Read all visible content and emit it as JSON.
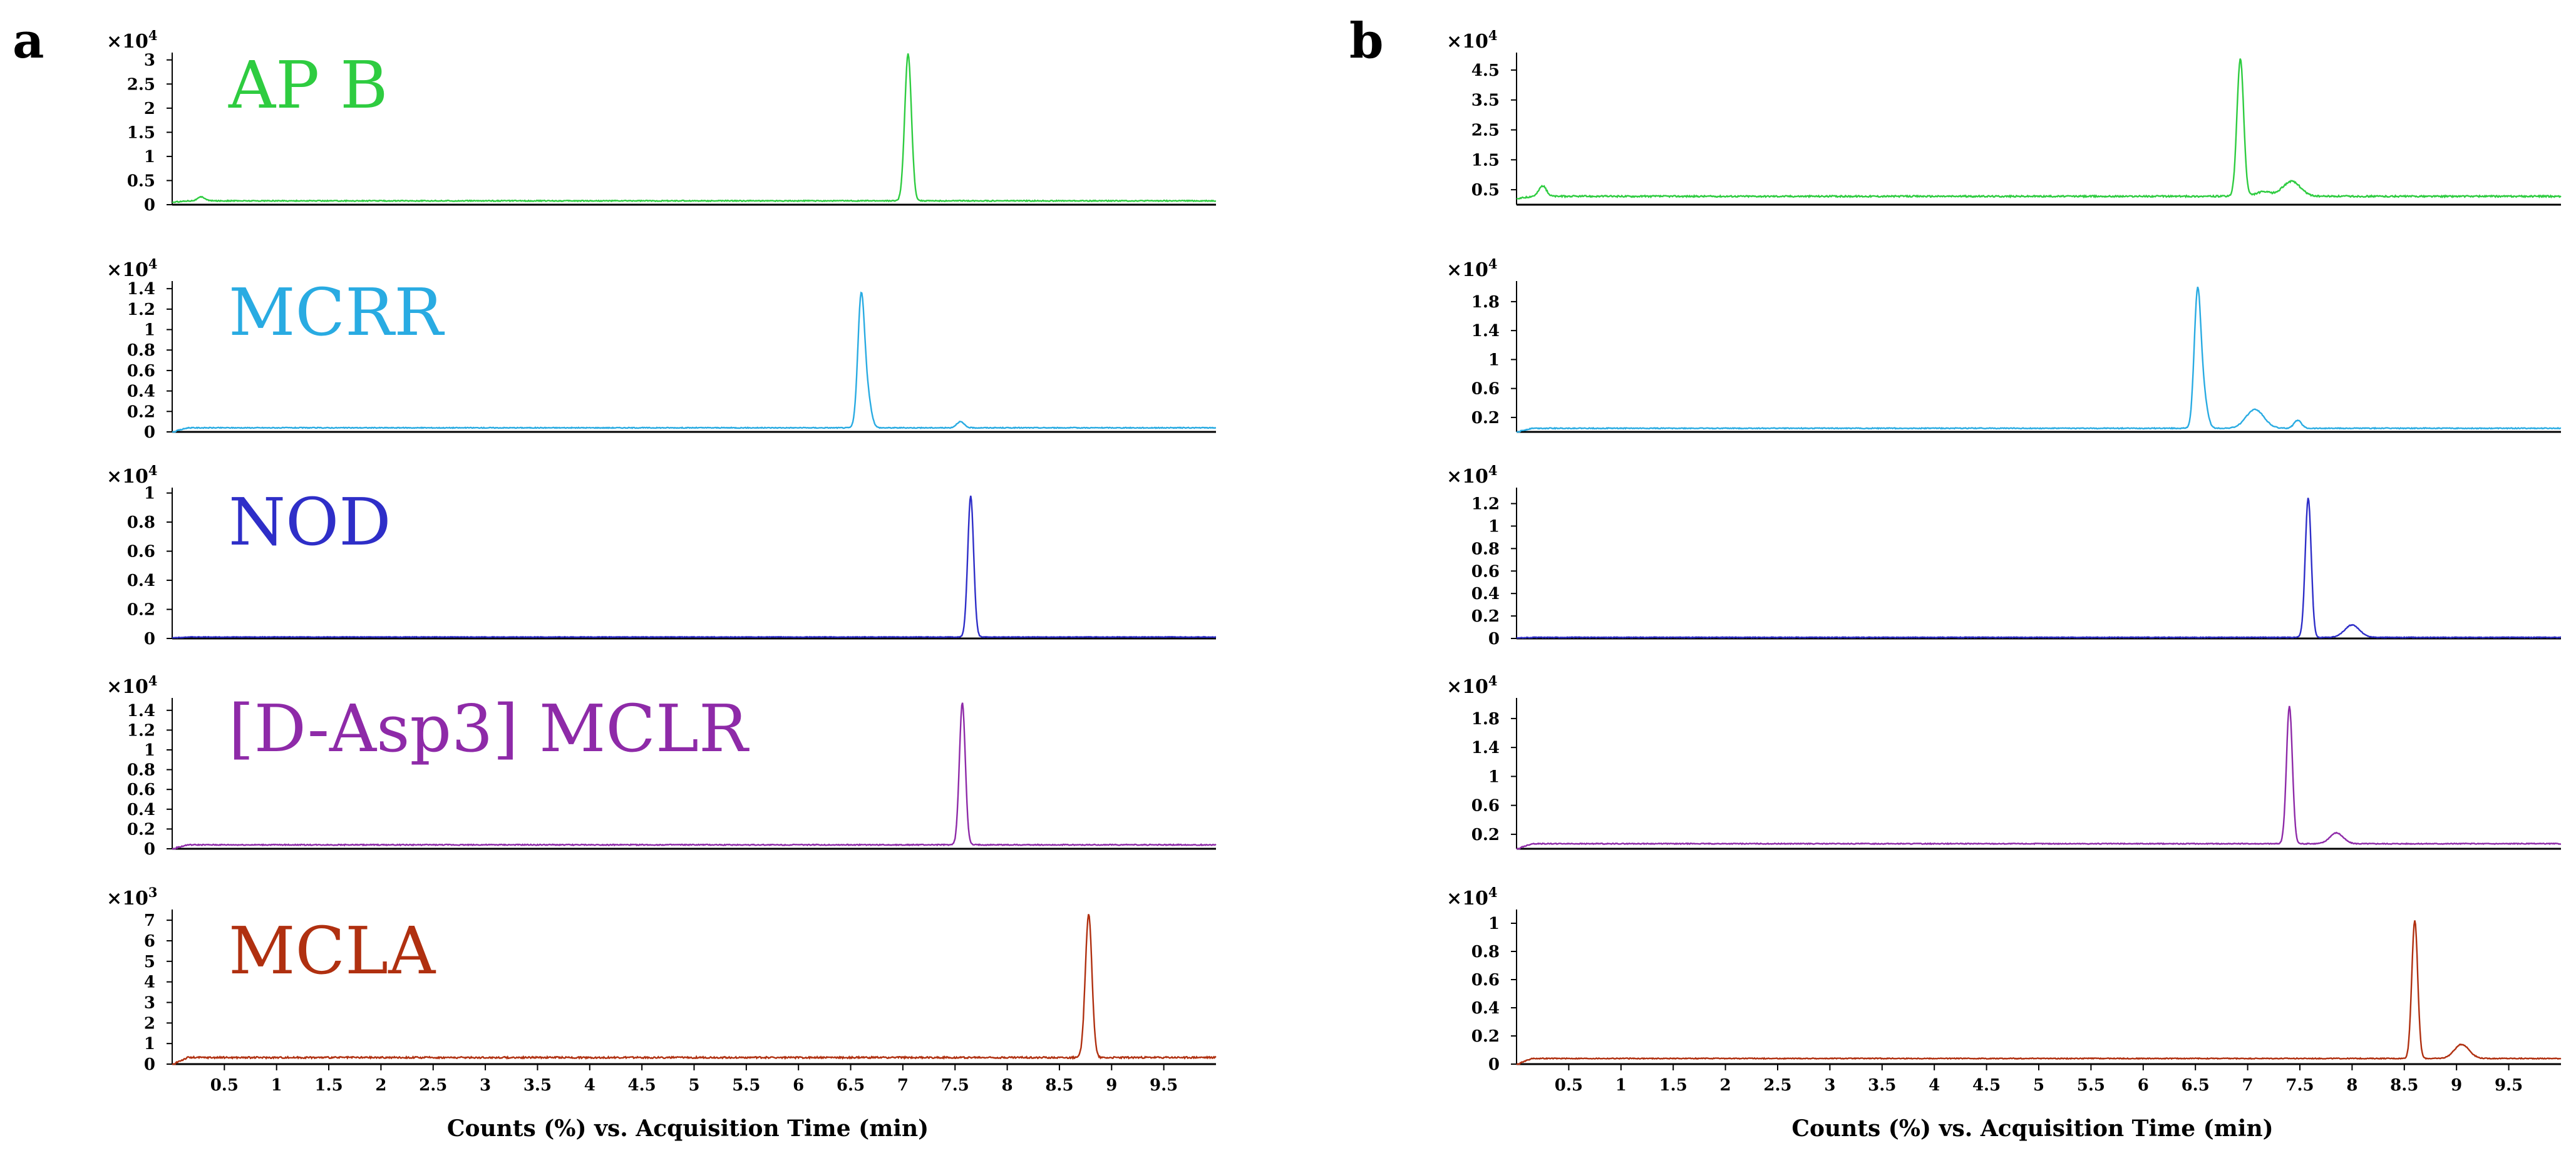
{
  "chart_data": {
    "type": "line",
    "xlabel": "Counts (%) vs. Acquisition Time (min)",
    "xlim": [
      0,
      10
    ],
    "xticks": [
      "0.5",
      "1",
      "1.5",
      "2",
      "2.5",
      "3",
      "3.5",
      "4",
      "4.5",
      "5",
      "5.5",
      "6",
      "6.5",
      "7",
      "7.5",
      "8",
      "8.5",
      "9",
      "9.5"
    ],
    "panels": [
      {
        "letter": "a",
        "subplots": [
          {
            "name": "AP B",
            "color": "#2ecc40",
            "exponent_label": "×10",
            "exponent": "4",
            "yticks": [
              "0",
              "0.5",
              "1",
              "1.5",
              "2",
              "2.5",
              "3"
            ],
            "ylim": [
              0,
              3.1
            ],
            "baseline": 0.08,
            "start_baseline": 0.05,
            "start_bump": {
              "x": 0.28,
              "h": 0.08
            },
            "noise": 0.01,
            "peaks": [
              {
                "x": 7.05,
                "h": 3.05,
                "w": 0.045
              }
            ]
          },
          {
            "name": "MCRR",
            "color": "#29abe2",
            "exponent_label": "×10",
            "exponent": "4",
            "yticks": [
              "0",
              "0.2",
              "0.4",
              "0.6",
              "0.8",
              "1",
              "1.2",
              "1.4"
            ],
            "ylim": [
              0,
              1.45
            ],
            "baseline": 0.04,
            "start_baseline": 0.0,
            "noise": 0.004,
            "peaks": [
              {
                "x": 6.6,
                "h": 1.25,
                "w": 0.045
              },
              {
                "x": 6.66,
                "h": 0.3,
                "w": 0.05
              },
              {
                "x": 7.55,
                "h": 0.06,
                "w": 0.05
              }
            ]
          },
          {
            "name": "NOD",
            "color": "#2e2ec8",
            "exponent_label": "×10",
            "exponent": "4",
            "yticks": [
              "0",
              "0.2",
              "0.4",
              "0.6",
              "0.8",
              "1"
            ],
            "ylim": [
              0,
              1.02
            ],
            "baseline": 0.01,
            "start_baseline": 0.005,
            "noise": 0.002,
            "peaks": [
              {
                "x": 7.65,
                "h": 0.97,
                "w": 0.04
              }
            ]
          },
          {
            "name": "[D-Asp3] MCLR",
            "color": "#8e2aa8",
            "exponent_label": "×10",
            "exponent": "4",
            "yticks": [
              "0",
              "0.2",
              "0.4",
              "0.6",
              "0.8",
              "1",
              "1.2",
              "1.4"
            ],
            "ylim": [
              0,
              1.5
            ],
            "baseline": 0.04,
            "start_baseline": 0.0,
            "noise": 0.005,
            "peaks": [
              {
                "x": 7.57,
                "h": 1.44,
                "w": 0.04
              }
            ]
          },
          {
            "name": "MCLA",
            "color": "#b03010",
            "exponent_label": "×10",
            "exponent": "3",
            "yticks": [
              "0",
              "1",
              "2",
              "3",
              "4",
              "5",
              "6",
              "7"
            ],
            "ylim": [
              0,
              7.4
            ],
            "baseline": 0.32,
            "start_baseline": 0.0,
            "noise": 0.04,
            "peaks": [
              {
                "x": 8.78,
                "h": 6.95,
                "w": 0.045
              }
            ]
          }
        ]
      },
      {
        "letter": "b",
        "subplots": [
          {
            "name": "",
            "color": "#2ecc40",
            "exponent_label": "×10",
            "exponent": "4",
            "yticks": [
              "0.5",
              "1.5",
              "2.5",
              "3.5",
              "4.5"
            ],
            "ylim": [
              0,
              5.0
            ],
            "baseline": 0.28,
            "start_baseline": 0.2,
            "start_bump": {
              "x": 0.25,
              "h": 0.35
            },
            "noise": 0.025,
            "peaks": [
              {
                "x": 6.93,
                "h": 4.6,
                "w": 0.045
              },
              {
                "x": 7.42,
                "h": 0.5,
                "w": 0.12
              },
              {
                "x": 7.15,
                "h": 0.15,
                "w": 0.1
              }
            ]
          },
          {
            "name": "",
            "color": "#29abe2",
            "exponent_label": "×10",
            "exponent": "4",
            "yticks": [
              "0.2",
              "0.6",
              "1",
              "1.4",
              "1.8"
            ],
            "ylim": [
              0,
              2.05
            ],
            "baseline": 0.05,
            "start_baseline": 0.0,
            "noise": 0.006,
            "peaks": [
              {
                "x": 6.52,
                "h": 1.85,
                "w": 0.045
              },
              {
                "x": 6.58,
                "h": 0.4,
                "w": 0.05
              },
              {
                "x": 7.07,
                "h": 0.26,
                "w": 0.12
              },
              {
                "x": 7.48,
                "h": 0.11,
                "w": 0.05
              }
            ]
          },
          {
            "name": "",
            "color": "#2e2ec8",
            "exponent_label": "×10",
            "exponent": "4",
            "yticks": [
              "0",
              "0.2",
              "0.4",
              "0.6",
              "0.8",
              "1",
              "1.2"
            ],
            "ylim": [
              0,
              1.32
            ],
            "baseline": 0.01,
            "start_baseline": 0.005,
            "noise": 0.003,
            "peaks": [
              {
                "x": 7.58,
                "h": 1.24,
                "w": 0.04
              },
              {
                "x": 8.0,
                "h": 0.11,
                "w": 0.1
              }
            ]
          },
          {
            "name": "",
            "color": "#8e2aa8",
            "exponent_label": "×10",
            "exponent": "4",
            "yticks": [
              "0.2",
              "0.6",
              "1",
              "1.4",
              "1.8"
            ],
            "ylim": [
              0,
              2.05
            ],
            "baseline": 0.07,
            "start_baseline": 0.0,
            "noise": 0.006,
            "peaks": [
              {
                "x": 7.4,
                "h": 1.9,
                "w": 0.04
              },
              {
                "x": 7.85,
                "h": 0.15,
                "w": 0.09
              }
            ]
          },
          {
            "name": "",
            "color": "#b03010",
            "exponent_label": "×10",
            "exponent": "4",
            "yticks": [
              "0",
              "0.2",
              "0.4",
              "0.6",
              "0.8",
              "1"
            ],
            "ylim": [
              0,
              1.08
            ],
            "baseline": 0.04,
            "start_baseline": 0.0,
            "noise": 0.003,
            "peaks": [
              {
                "x": 8.6,
                "h": 0.98,
                "w": 0.04
              },
              {
                "x": 9.05,
                "h": 0.1,
                "w": 0.1
              }
            ]
          }
        ]
      }
    ]
  }
}
